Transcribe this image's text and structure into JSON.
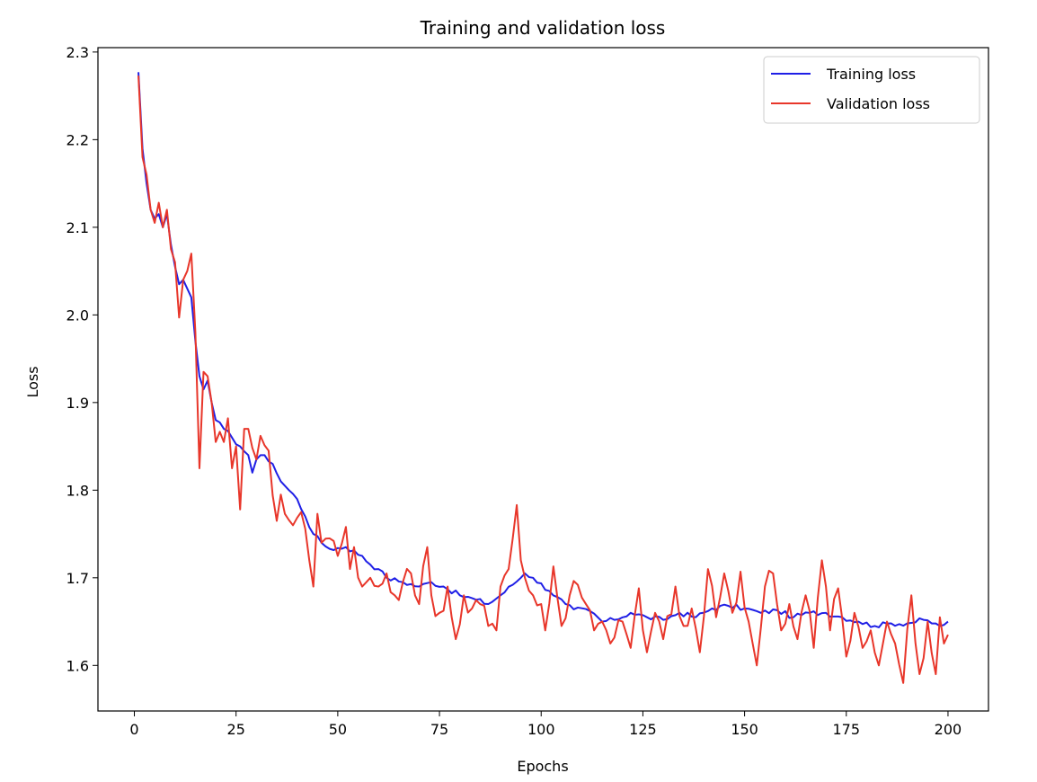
{
  "chart_data": {
    "type": "line",
    "title": "Training and validation loss",
    "xlabel": "Epochs",
    "ylabel": "Loss",
    "xlim": [
      -8.95,
      209.95
    ],
    "ylim": [
      1.548,
      2.305
    ],
    "xticks": [
      0,
      25,
      50,
      75,
      100,
      125,
      150,
      175,
      200
    ],
    "yticks": [
      1.6,
      1.7,
      1.8,
      1.9,
      2.0,
      2.1,
      2.2,
      2.3
    ],
    "xtick_labels": [
      "0",
      "25",
      "50",
      "75",
      "100",
      "125",
      "150",
      "175",
      "200"
    ],
    "ytick_labels": [
      "1.6",
      "1.7",
      "1.8",
      "1.9",
      "2.0",
      "2.1",
      "2.2",
      "2.3"
    ],
    "grid": false,
    "legend_position": "top-right",
    "series": [
      {
        "name": "Training loss",
        "color": "#1f1fe6",
        "keypoints": [
          [
            1,
            2.277
          ],
          [
            2,
            2.19
          ],
          [
            3,
            2.15
          ],
          [
            4,
            2.12
          ],
          [
            5,
            2.11
          ],
          [
            6,
            2.115
          ],
          [
            7,
            2.1
          ],
          [
            8,
            2.115
          ],
          [
            9,
            2.08
          ],
          [
            10,
            2.055
          ],
          [
            11,
            2.035
          ],
          [
            12,
            2.04
          ],
          [
            13,
            2.03
          ],
          [
            14,
            2.02
          ],
          [
            15,
            1.97
          ],
          [
            16,
            1.93
          ],
          [
            17,
            1.915
          ],
          [
            18,
            1.925
          ],
          [
            19,
            1.9
          ],
          [
            20,
            1.88
          ],
          [
            22,
            1.87
          ],
          [
            24,
            1.86
          ],
          [
            26,
            1.85
          ],
          [
            28,
            1.84
          ],
          [
            29,
            1.82
          ],
          [
            30,
            1.835
          ],
          [
            32,
            1.84
          ],
          [
            34,
            1.83
          ],
          [
            36,
            1.81
          ],
          [
            38,
            1.8
          ],
          [
            40,
            1.79
          ],
          [
            42,
            1.77
          ],
          [
            44,
            1.75
          ],
          [
            46,
            1.74
          ],
          [
            48,
            1.733
          ],
          [
            52,
            1.735
          ],
          [
            56,
            1.725
          ],
          [
            58,
            1.715
          ],
          [
            60,
            1.71
          ],
          [
            62,
            1.7
          ],
          [
            66,
            1.695
          ],
          [
            70,
            1.69
          ],
          [
            73,
            1.695
          ],
          [
            76,
            1.69
          ],
          [
            80,
            1.68
          ],
          [
            84,
            1.675
          ],
          [
            87,
            1.67
          ],
          [
            90,
            1.68
          ],
          [
            93,
            1.692
          ],
          [
            96,
            1.705
          ],
          [
            98,
            1.7
          ],
          [
            102,
            1.685
          ],
          [
            104,
            1.678
          ],
          [
            106,
            1.67
          ],
          [
            108,
            1.664
          ],
          [
            112,
            1.662
          ],
          [
            115,
            1.65
          ],
          [
            118,
            1.652
          ],
          [
            122,
            1.66
          ],
          [
            126,
            1.655
          ],
          [
            130,
            1.652
          ],
          [
            134,
            1.66
          ],
          [
            138,
            1.655
          ],
          [
            142,
            1.665
          ],
          [
            146,
            1.668
          ],
          [
            150,
            1.665
          ],
          [
            154,
            1.66
          ],
          [
            158,
            1.663
          ],
          [
            162,
            1.655
          ],
          [
            166,
            1.66
          ],
          [
            170,
            1.66
          ],
          [
            174,
            1.655
          ],
          [
            178,
            1.65
          ],
          [
            182,
            1.645
          ],
          [
            186,
            1.648
          ],
          [
            190,
            1.648
          ],
          [
            194,
            1.652
          ],
          [
            198,
            1.645
          ],
          [
            200,
            1.65
          ]
        ],
        "noise_amplitude": 0.003
      },
      {
        "name": "Validation loss",
        "color": "#e8362a",
        "keypoints": [
          [
            1,
            2.273
          ],
          [
            2,
            2.18
          ],
          [
            3,
            2.16
          ],
          [
            4,
            2.12
          ],
          [
            5,
            2.105
          ],
          [
            6,
            2.128
          ],
          [
            7,
            2.1
          ],
          [
            8,
            2.12
          ],
          [
            9,
            2.075
          ],
          [
            10,
            2.06
          ],
          [
            11,
            1.997
          ],
          [
            12,
            2.04
          ],
          [
            13,
            2.05
          ],
          [
            14,
            2.07
          ],
          [
            15,
            1.98
          ],
          [
            16,
            1.825
          ],
          [
            17,
            1.935
          ],
          [
            18,
            1.93
          ],
          [
            19,
            1.9
          ],
          [
            20,
            1.855
          ],
          [
            22,
            1.855
          ],
          [
            23,
            1.882
          ],
          [
            24,
            1.825
          ],
          [
            25,
            1.85
          ],
          [
            26,
            1.778
          ],
          [
            27,
            1.87
          ],
          [
            28,
            1.87
          ],
          [
            30,
            1.835
          ],
          [
            31,
            1.862
          ],
          [
            33,
            1.845
          ],
          [
            35,
            1.765
          ],
          [
            36,
            1.795
          ],
          [
            37,
            1.773
          ],
          [
            39,
            1.76
          ],
          [
            41,
            1.775
          ],
          [
            43,
            1.72
          ],
          [
            44,
            1.69
          ],
          [
            45,
            1.773
          ],
          [
            46,
            1.74
          ],
          [
            48,
            1.745
          ],
          [
            50,
            1.725
          ],
          [
            52,
            1.758
          ],
          [
            53,
            1.71
          ],
          [
            54,
            1.735
          ],
          [
            56,
            1.69
          ],
          [
            58,
            1.7
          ],
          [
            60,
            1.69
          ],
          [
            62,
            1.705
          ],
          [
            64,
            1.68
          ],
          [
            66,
            1.695
          ],
          [
            68,
            1.705
          ],
          [
            70,
            1.67
          ],
          [
            72,
            1.735
          ],
          [
            73,
            1.68
          ],
          [
            75,
            1.66
          ],
          [
            77,
            1.69
          ],
          [
            79,
            1.63
          ],
          [
            81,
            1.68
          ],
          [
            83,
            1.665
          ],
          [
            85,
            1.67
          ],
          [
            87,
            1.645
          ],
          [
            89,
            1.64
          ],
          [
            90,
            1.69
          ],
          [
            92,
            1.71
          ],
          [
            94,
            1.783
          ],
          [
            95,
            1.72
          ],
          [
            96,
            1.7
          ],
          [
            98,
            1.68
          ],
          [
            100,
            1.67
          ],
          [
            101,
            1.64
          ],
          [
            103,
            1.713
          ],
          [
            105,
            1.645
          ],
          [
            107,
            1.68
          ],
          [
            109,
            1.692
          ],
          [
            111,
            1.67
          ],
          [
            113,
            1.64
          ],
          [
            115,
            1.65
          ],
          [
            117,
            1.625
          ],
          [
            120,
            1.65
          ],
          [
            122,
            1.62
          ],
          [
            124,
            1.688
          ],
          [
            126,
            1.615
          ],
          [
            128,
            1.66
          ],
          [
            130,
            1.63
          ],
          [
            133,
            1.69
          ],
          [
            135,
            1.645
          ],
          [
            137,
            1.665
          ],
          [
            139,
            1.615
          ],
          [
            141,
            1.71
          ],
          [
            143,
            1.655
          ],
          [
            145,
            1.705
          ],
          [
            147,
            1.66
          ],
          [
            149,
            1.707
          ],
          [
            151,
            1.65
          ],
          [
            153,
            1.6
          ],
          [
            155,
            1.69
          ],
          [
            157,
            1.705
          ],
          [
            159,
            1.64
          ],
          [
            161,
            1.67
          ],
          [
            163,
            1.63
          ],
          [
            165,
            1.68
          ],
          [
            167,
            1.62
          ],
          [
            169,
            1.72
          ],
          [
            171,
            1.64
          ],
          [
            173,
            1.688
          ],
          [
            175,
            1.61
          ],
          [
            177,
            1.66
          ],
          [
            179,
            1.62
          ],
          [
            181,
            1.64
          ],
          [
            183,
            1.6
          ],
          [
            185,
            1.65
          ],
          [
            187,
            1.625
          ],
          [
            189,
            1.58
          ],
          [
            191,
            1.68
          ],
          [
            193,
            1.59
          ],
          [
            195,
            1.65
          ],
          [
            197,
            1.59
          ],
          [
            198,
            1.655
          ],
          [
            199,
            1.625
          ],
          [
            200,
            1.635
          ]
        ],
        "noise_amplitude": 0.014
      }
    ]
  }
}
